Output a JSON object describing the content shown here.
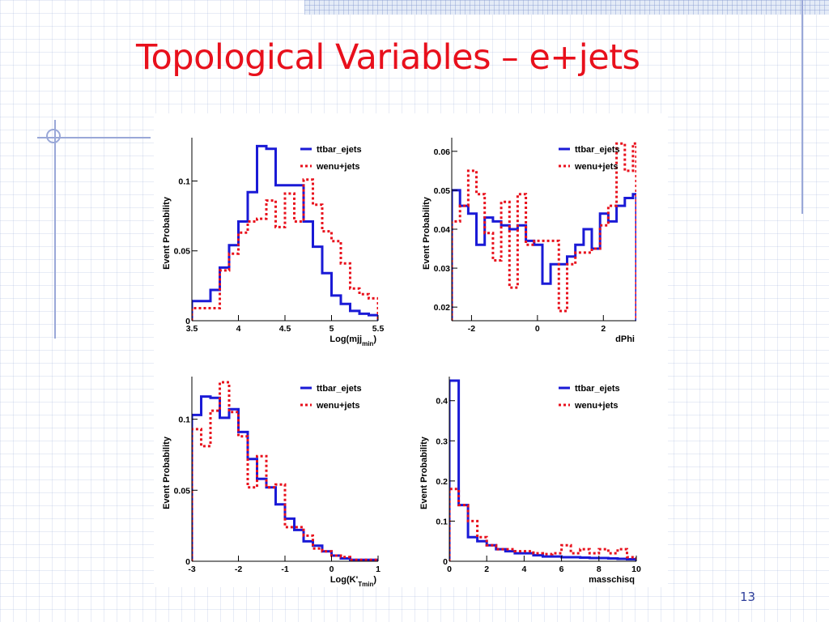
{
  "slide": {
    "title": "Topological Variables – e+jets",
    "page_number": "13",
    "colors": {
      "title": "#e8101c",
      "page_number": "#2f3f9a",
      "decoration": "#9aa8d8"
    }
  },
  "chart_data": [
    {
      "type": "histogram",
      "xlabel": "Log(mjj",
      "xlabel_sub": "min",
      "xlabel_tail": ")",
      "ylabel": "Event Probability",
      "xlim": [
        3.5,
        5.5
      ],
      "ylim": [
        0,
        0.131
      ],
      "xticks": [
        {
          "v": 3.5,
          "l": "3.5"
        },
        {
          "v": 4,
          "l": "4"
        },
        {
          "v": 4.5,
          "l": "4.5"
        },
        {
          "v": 5,
          "l": "5"
        },
        {
          "v": 5.5,
          "l": "5.5"
        }
      ],
      "yticks": [
        {
          "v": 0,
          "l": "0"
        },
        {
          "v": 0.05,
          "l": "0.05"
        },
        {
          "v": 0.1,
          "l": "0.1"
        }
      ],
      "bin_edges": [
        3.5,
        3.6,
        3.7,
        3.8,
        3.9,
        4.0,
        4.1,
        4.2,
        4.3,
        4.4,
        4.5,
        4.6,
        4.7,
        4.8,
        4.9,
        5.0,
        5.1,
        5.2,
        5.3,
        5.4,
        5.5
      ],
      "series": [
        {
          "name": "ttbar_ejets",
          "color": "#1a1ad6",
          "style": "solid",
          "values": [
            0.014,
            0.014,
            0.022,
            0.038,
            0.054,
            0.071,
            0.092,
            0.125,
            0.123,
            0.097,
            0.097,
            0.097,
            0.071,
            0.053,
            0.034,
            0.018,
            0.012,
            0.007,
            0.005,
            0.004
          ]
        },
        {
          "name": "wenu+jets",
          "color": "#e8101c",
          "style": "dotted",
          "values": [
            0.009,
            0.009,
            0.009,
            0.036,
            0.048,
            0.063,
            0.071,
            0.073,
            0.086,
            0.067,
            0.091,
            0.071,
            0.101,
            0.083,
            0.064,
            0.057,
            0.041,
            0.023,
            0.019,
            0.016
          ]
        }
      ],
      "legend": "top-right"
    },
    {
      "type": "histogram",
      "xlabel": "dPhi",
      "ylabel": "Event Probability",
      "xlim": [
        -2.6,
        3.0
      ],
      "ylim": [
        0.0165,
        0.0635
      ],
      "xticks": [
        {
          "v": -2,
          "l": "-2"
        },
        {
          "v": 0,
          "l": "0"
        },
        {
          "v": 2,
          "l": "2"
        }
      ],
      "yticks": [
        {
          "v": 0.02,
          "l": "0.02"
        },
        {
          "v": 0.03,
          "l": "0.03"
        },
        {
          "v": 0.04,
          "l": "0.04"
        },
        {
          "v": 0.05,
          "l": "0.05"
        },
        {
          "v": 0.06,
          "l": "0.06"
        }
      ],
      "bin_edges": [
        -2.6,
        -2.35,
        -2.1,
        -1.85,
        -1.6,
        -1.35,
        -1.1,
        -0.85,
        -0.6,
        -0.35,
        -0.1,
        0.15,
        0.4,
        0.65,
        0.9,
        1.15,
        1.4,
        1.65,
        1.9,
        2.15,
        2.4,
        2.65,
        2.9,
        3.0
      ],
      "series": [
        {
          "name": "ttbar_ejets",
          "color": "#1a1ad6",
          "style": "solid",
          "values": [
            0.05,
            0.046,
            0.044,
            0.036,
            0.043,
            0.042,
            0.041,
            0.04,
            0.041,
            0.037,
            0.036,
            0.026,
            0.031,
            0.031,
            0.033,
            0.036,
            0.04,
            0.035,
            0.044,
            0.042,
            0.046,
            0.048,
            0.049
          ]
        },
        {
          "name": "wenu+jets",
          "color": "#e8101c",
          "style": "dotted",
          "values": [
            0.042,
            0.046,
            0.055,
            0.049,
            0.039,
            0.032,
            0.047,
            0.025,
            0.049,
            0.036,
            0.037,
            0.037,
            0.037,
            0.019,
            0.031,
            0.034,
            0.034,
            0.035,
            0.041,
            0.046,
            0.062,
            0.055,
            0.062
          ]
        }
      ],
      "legend": "top-right"
    },
    {
      "type": "histogram",
      "xlabel": "Log(K'",
      "xlabel_sub": "Tmin",
      "xlabel_tail": ")",
      "ylabel": "Event Probability",
      "xlim": [
        -3,
        1
      ],
      "ylim": [
        0,
        0.13
      ],
      "xticks": [
        {
          "v": -3,
          "l": "-3"
        },
        {
          "v": -2,
          "l": "-2"
        },
        {
          "v": -1,
          "l": "-1"
        },
        {
          "v": 0,
          "l": "0"
        },
        {
          "v": 1,
          "l": "1"
        }
      ],
      "yticks": [
        {
          "v": 0,
          "l": "0"
        },
        {
          "v": 0.05,
          "l": "0.05"
        },
        {
          "v": 0.1,
          "l": "0.1"
        }
      ],
      "bin_edges": [
        -3.0,
        -2.8,
        -2.6,
        -2.4,
        -2.2,
        -2.0,
        -1.8,
        -1.6,
        -1.4,
        -1.2,
        -1.0,
        -0.8,
        -0.6,
        -0.4,
        -0.2,
        0.0,
        0.2,
        0.4,
        0.6,
        0.8,
        1.0
      ],
      "series": [
        {
          "name": "ttbar_ejets",
          "color": "#1a1ad6",
          "style": "solid",
          "values": [
            0.103,
            0.116,
            0.115,
            0.101,
            0.107,
            0.091,
            0.072,
            0.058,
            0.052,
            0.04,
            0.03,
            0.022,
            0.014,
            0.011,
            0.007,
            0.004,
            0.002,
            0.001,
            0.001,
            0.001
          ]
        },
        {
          "name": "wenu+jets",
          "color": "#e8101c",
          "style": "dotted",
          "values": [
            0.093,
            0.081,
            0.106,
            0.126,
            0.105,
            0.088,
            0.052,
            0.074,
            0.052,
            0.054,
            0.024,
            0.024,
            0.018,
            0.009,
            0.007,
            0.004,
            0.003,
            0.001,
            0.001,
            0.001
          ]
        }
      ],
      "legend": "top-right"
    },
    {
      "type": "histogram",
      "xlabel": "masschisq",
      "ylabel": "Event Probability",
      "xlim": [
        0,
        10
      ],
      "ylim": [
        0,
        0.46
      ],
      "xticks": [
        {
          "v": 0,
          "l": "0"
        },
        {
          "v": 2,
          "l": "2"
        },
        {
          "v": 4,
          "l": "4"
        },
        {
          "v": 6,
          "l": "6"
        },
        {
          "v": 8,
          "l": "8"
        },
        {
          "v": 10,
          "l": "10"
        }
      ],
      "yticks": [
        {
          "v": 0,
          "l": "0"
        },
        {
          "v": 0.1,
          "l": "0.1"
        },
        {
          "v": 0.2,
          "l": "0.2"
        },
        {
          "v": 0.3,
          "l": "0.3"
        },
        {
          "v": 0.4,
          "l": "0.4"
        }
      ],
      "bin_edges": [
        0.0,
        0.5,
        1.0,
        1.5,
        2.0,
        2.5,
        3.0,
        3.5,
        4.0,
        4.5,
        5.0,
        5.5,
        6.0,
        6.5,
        7.0,
        7.5,
        8.0,
        8.5,
        9.0,
        9.5,
        10.0
      ],
      "series": [
        {
          "name": "ttbar_ejets",
          "color": "#1a1ad6",
          "style": "solid",
          "values": [
            0.45,
            0.14,
            0.06,
            0.05,
            0.04,
            0.03,
            0.025,
            0.02,
            0.02,
            0.015,
            0.012,
            0.012,
            0.01,
            0.01,
            0.009,
            0.008,
            0.008,
            0.007,
            0.006,
            0.005
          ]
        },
        {
          "name": "wenu+jets",
          "color": "#e8101c",
          "style": "dotted",
          "values": [
            0.18,
            0.14,
            0.1,
            0.06,
            0.04,
            0.03,
            0.03,
            0.025,
            0.025,
            0.02,
            0.018,
            0.02,
            0.04,
            0.02,
            0.03,
            0.02,
            0.03,
            0.02,
            0.03,
            0.01
          ]
        }
      ],
      "legend": "top-right"
    }
  ]
}
